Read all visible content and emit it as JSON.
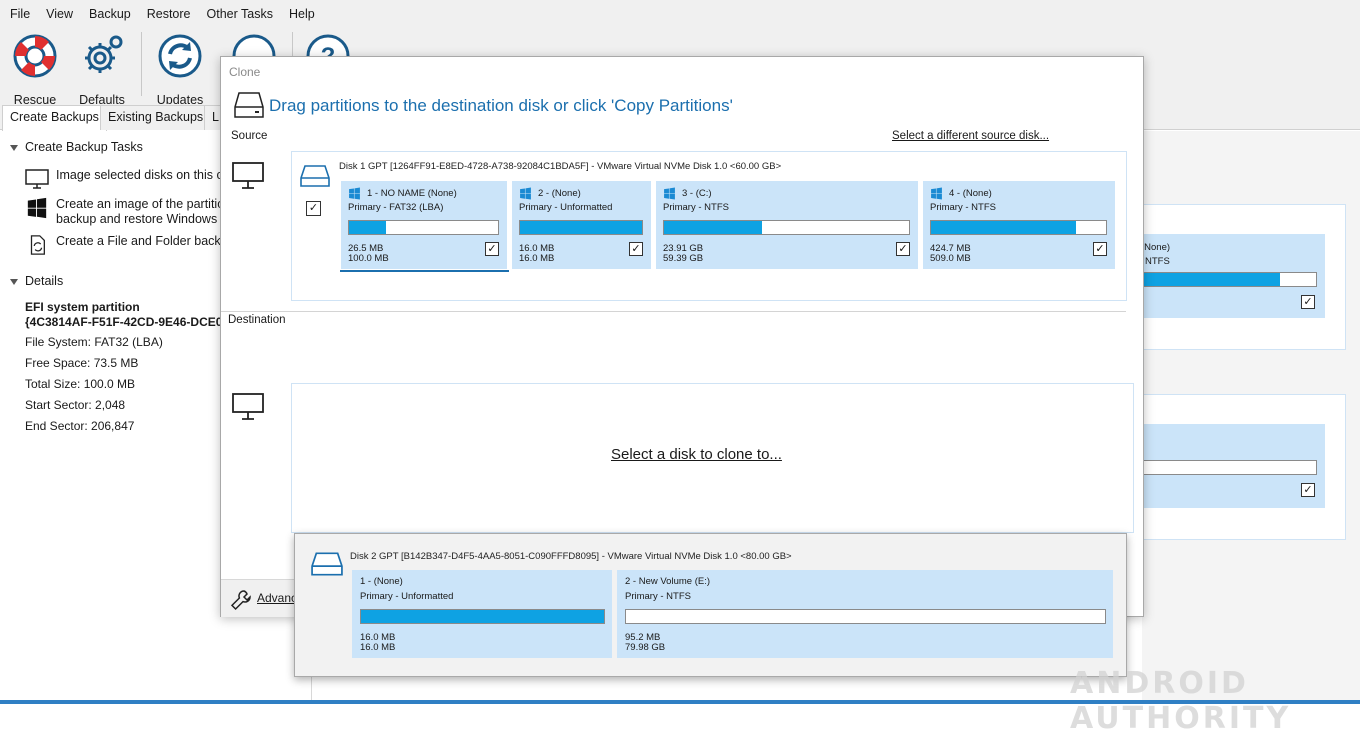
{
  "menu": [
    "File",
    "View",
    "Backup",
    "Restore",
    "Other Tasks",
    "Help"
  ],
  "toolbar": {
    "rescue": "Rescue",
    "defaults": "Defaults",
    "updates": "Updates"
  },
  "tabs": [
    "Create Backups",
    "Existing Backups",
    "L"
  ],
  "left": {
    "tasks_header": "Create Backup Tasks",
    "task1": "Image selected disks on this co",
    "task2_line1": "Create an image of the partitio",
    "task2_line2": "backup and restore Windows",
    "task3": "Create a File and Folder backup",
    "details_header": "Details",
    "detail_title": "EFI system partition",
    "detail_guid": "{4C3814AF-F51F-42CD-9E46-DCE0",
    "file_system": "File System:  FAT32 (LBA)",
    "free_space": "Free Space:  73.5 MB",
    "total_size": "Total Size:   100.0 MB",
    "start_sector": "Start Sector:   2,048",
    "end_sector": "End Sector:     206,847"
  },
  "background": {
    "part_name": "(None)",
    "part_type": "NTFS"
  },
  "dialog": {
    "title": "Clone",
    "heading": "Drag partitions to the destination disk or click 'Copy Partitions'",
    "source_label": "Source",
    "destination_label": "Destination",
    "select_source_link": "Select a different source disk...",
    "select_dest_link": "Select a disk to clone to...",
    "advanced": "Advanc",
    "source_disk": {
      "line": "Disk 1 GPT [1264FF91-E8ED-4728-A738-92084C1BDA5F] - VMware Virtual NVMe Disk 1.0  <60.00 GB>",
      "partitions": [
        {
          "name": "1 - NO NAME (None)",
          "type": "Primary - FAT32 (LBA)",
          "used": "26.5 MB",
          "total": "100.0 MB",
          "fill": 0.25,
          "checked": "✓"
        },
        {
          "name": "2 -  (None)",
          "type": "Primary - Unformatted",
          "used": "16.0 MB",
          "total": "16.0 MB",
          "fill": 1.0,
          "checked": "✓"
        },
        {
          "name": "3 -  (C:)",
          "type": "Primary - NTFS",
          "used": "23.91 GB",
          "total": "59.39 GB",
          "fill": 0.4,
          "checked": "✓"
        },
        {
          "name": "4 -  (None)",
          "type": "Primary - NTFS",
          "used": "424.7 MB",
          "total": "509.0 MB",
          "fill": 0.83,
          "checked": "✓"
        }
      ]
    }
  },
  "popup": {
    "line": "Disk 2 GPT [B142B347-D4F5-4AA5-8051-C090FFFD8095] - VMware Virtual NVMe Disk 1.0  <80.00 GB>",
    "partitions": [
      {
        "name": "1 -  (None)",
        "type": "Primary - Unformatted",
        "used": "16.0 MB",
        "total": "16.0 MB",
        "fill": 1.0
      },
      {
        "name": "2 - New Volume (E:)",
        "type": "Primary - NTFS",
        "used": "95.2 MB",
        "total": "79.98 GB",
        "fill": 0.0
      }
    ]
  },
  "watermark": "ANDROID AUTHORITY",
  "colors": {
    "accent": "#1b6fae",
    "partition_bg": "#cbe4f9",
    "bar_fill": "#0ea2e3"
  }
}
